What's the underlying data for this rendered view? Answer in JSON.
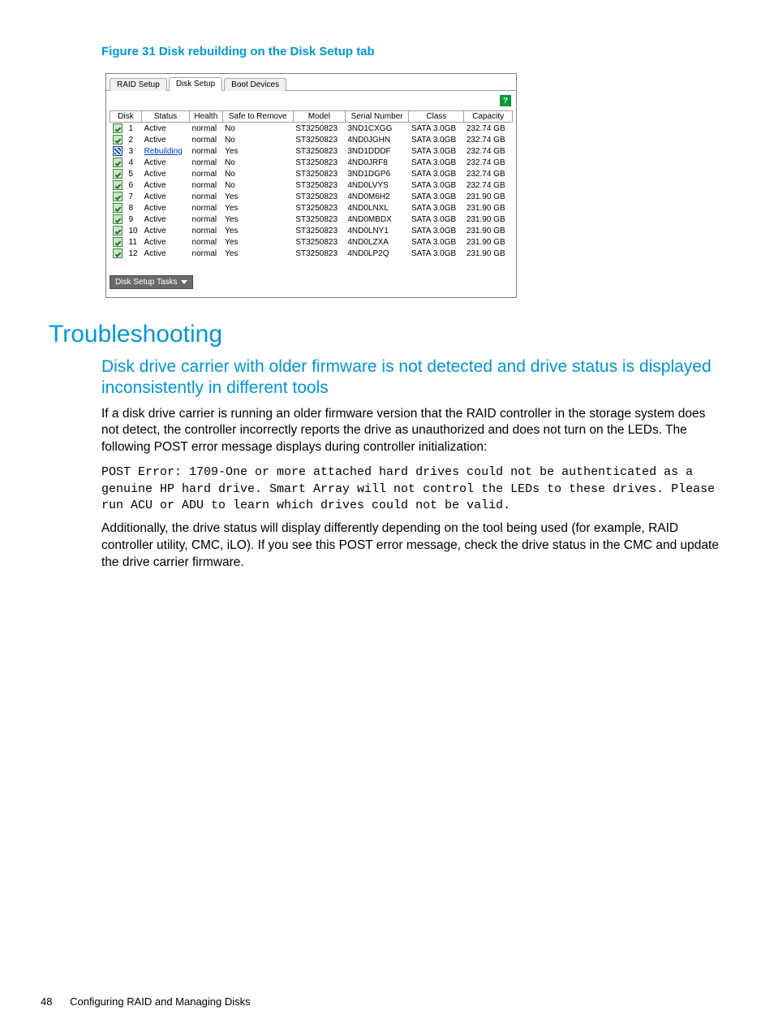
{
  "figure": {
    "caption": "Figure 31 Disk rebuilding on the Disk Setup tab"
  },
  "screenshot": {
    "tabs": {
      "raid": "RAID Setup",
      "disk": "Disk Setup",
      "boot": "Boot Devices"
    },
    "help_glyph": "?",
    "columns": [
      "Disk",
      "Status",
      "Health",
      "Safe to Remove",
      "Model",
      "Serial Number",
      "Class",
      "Capacity"
    ],
    "rows": [
      {
        "icon": "ok",
        "disk": "1",
        "status": "Active",
        "health": "normal",
        "safe": "No",
        "model": "ST3250823",
        "serial": "3ND1CXGG",
        "class": "SATA 3.0GB",
        "capacity": "232.74 GB"
      },
      {
        "icon": "ok",
        "disk": "2",
        "status": "Active",
        "health": "normal",
        "safe": "No",
        "model": "ST3250823",
        "serial": "4ND0JGHN",
        "class": "SATA 3.0GB",
        "capacity": "232.74 GB"
      },
      {
        "icon": "rebuild",
        "disk": "3",
        "status": "Rebuilding",
        "health": "normal",
        "safe": "Yes",
        "model": "ST3250823",
        "serial": "3ND1DDDF",
        "class": "SATA 3.0GB",
        "capacity": "232.74 GB"
      },
      {
        "icon": "ok",
        "disk": "4",
        "status": "Active",
        "health": "normal",
        "safe": "No",
        "model": "ST3250823",
        "serial": "4ND0JRF8",
        "class": "SATA 3.0GB",
        "capacity": "232.74 GB"
      },
      {
        "icon": "ok",
        "disk": "5",
        "status": "Active",
        "health": "normal",
        "safe": "No",
        "model": "ST3250823",
        "serial": "3ND1DGP6",
        "class": "SATA 3.0GB",
        "capacity": "232.74 GB"
      },
      {
        "icon": "ok",
        "disk": "6",
        "status": "Active",
        "health": "normal",
        "safe": "No",
        "model": "ST3250823",
        "serial": "4ND0LVYS",
        "class": "SATA 3.0GB",
        "capacity": "232.74 GB"
      },
      {
        "icon": "ok",
        "disk": "7",
        "status": "Active",
        "health": "normal",
        "safe": "Yes",
        "model": "ST3250823",
        "serial": "4ND0M6H2",
        "class": "SATA 3.0GB",
        "capacity": "231.90 GB"
      },
      {
        "icon": "ok",
        "disk": "8",
        "status": "Active",
        "health": "normal",
        "safe": "Yes",
        "model": "ST3250823",
        "serial": "4ND0LNXL",
        "class": "SATA 3.0GB",
        "capacity": "231.90 GB"
      },
      {
        "icon": "ok",
        "disk": "9",
        "status": "Active",
        "health": "normal",
        "safe": "Yes",
        "model": "ST3250823",
        "serial": "4ND0MBDX",
        "class": "SATA 3.0GB",
        "capacity": "231.90 GB"
      },
      {
        "icon": "ok",
        "disk": "10",
        "status": "Active",
        "health": "normal",
        "safe": "Yes",
        "model": "ST3250823",
        "serial": "4ND0LNY1",
        "class": "SATA 3.0GB",
        "capacity": "231.90 GB"
      },
      {
        "icon": "ok",
        "disk": "11",
        "status": "Active",
        "health": "normal",
        "safe": "Yes",
        "model": "ST3250823",
        "serial": "4ND0LZXA",
        "class": "SATA 3.0GB",
        "capacity": "231.90 GB"
      },
      {
        "icon": "ok",
        "disk": "12",
        "status": "Active",
        "health": "normal",
        "safe": "Yes",
        "model": "ST3250823",
        "serial": "4ND0LP2Q",
        "class": "SATA 3.0GB",
        "capacity": "231.90 GB"
      }
    ],
    "tasks_button": "Disk Setup Tasks"
  },
  "troubleshooting": {
    "heading": "Troubleshooting",
    "sub_heading": "Disk drive carrier with older firmware is not detected and drive status is displayed inconsistently in different tools",
    "para1": "If a disk drive carrier is running an older firmware version that the RAID controller in the storage system does not detect, the controller incorrectly reports the drive as unauthorized and does not turn on the LEDs. The following POST error message displays during controller initialization:",
    "code": "POST Error: 1709-One or more attached hard drives could not be authenticated as a genuine HP hard drive. Smart Array will not control the LEDs to these drives. Please run ACU or ADU to learn which drives could not be valid.",
    "para2": "Additionally, the drive status will display differently depending on the tool being used (for example, RAID controller utility, CMC, iLO). If you see this POST error message, check the drive status in the CMC and update the drive carrier firmware."
  },
  "footer": {
    "page_number": "48",
    "page_label": "Configuring RAID and Managing Disks"
  },
  "style": {
    "accent_color": "#0096d6",
    "link_color": "#0033cc",
    "ok_icon_bg": "#c6e9c6",
    "rebuild_icon_bg": "#d0e0f5"
  }
}
